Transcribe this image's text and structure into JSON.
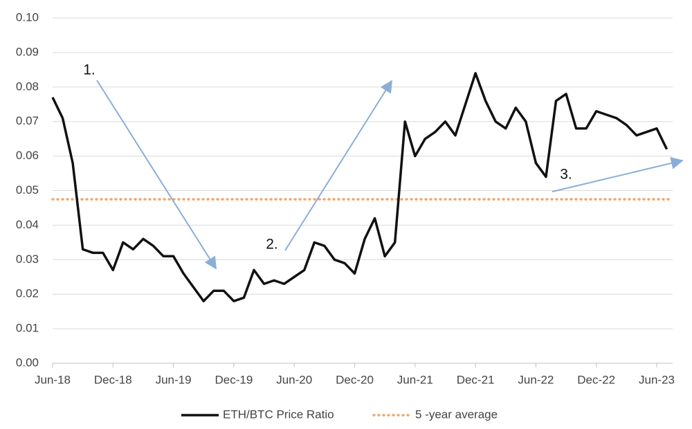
{
  "chart_data": {
    "type": "line",
    "categories": [
      "Jun-18",
      null,
      null,
      null,
      null,
      null,
      "Dec-18",
      null,
      null,
      null,
      null,
      null,
      "Jun-19",
      null,
      null,
      null,
      null,
      null,
      "Dec-19",
      null,
      null,
      null,
      null,
      null,
      "Jun-20",
      null,
      null,
      null,
      null,
      null,
      "Dec-20",
      null,
      null,
      null,
      null,
      null,
      "Jun-21",
      null,
      null,
      null,
      null,
      null,
      "Dec-21",
      null,
      null,
      null,
      null,
      null,
      "Jun-22",
      null,
      null,
      null,
      null,
      null,
      "Dec-22",
      null,
      null,
      null,
      null,
      null,
      "Jun-23",
      null
    ],
    "series": [
      {
        "name": "ETH/BTC Price Ratio",
        "color": "#111111",
        "values": [
          0.077,
          0.071,
          0.058,
          0.033,
          0.032,
          0.032,
          0.027,
          0.035,
          0.033,
          0.036,
          0.034,
          0.031,
          0.031,
          0.026,
          0.022,
          0.018,
          0.021,
          0.021,
          0.018,
          0.019,
          0.027,
          0.023,
          0.024,
          0.023,
          0.025,
          0.027,
          0.035,
          0.034,
          0.03,
          0.029,
          0.026,
          0.036,
          0.042,
          0.031,
          0.035,
          0.07,
          0.06,
          0.065,
          0.067,
          0.07,
          0.066,
          0.075,
          0.084,
          0.076,
          0.07,
          0.068,
          0.074,
          0.07,
          0.058,
          0.054,
          0.076,
          0.078,
          0.068,
          0.068,
          0.073,
          0.072,
          0.071,
          0.069,
          0.066,
          0.067,
          0.068,
          0.062
        ]
      }
    ],
    "average": {
      "name": "5 -year average",
      "value": 0.0475,
      "color": "#f0a870"
    },
    "annotations": [
      "1.",
      "2.",
      "3."
    ],
    "ylim": [
      0,
      0.1
    ],
    "yticks": [
      {
        "value": 0,
        "label": "0.00"
      },
      {
        "value": 0.01,
        "label": "0.01"
      },
      {
        "value": 0.02,
        "label": "0.02"
      },
      {
        "value": 0.03,
        "label": "0.03"
      },
      {
        "value": 0.04,
        "label": "0.04"
      },
      {
        "value": 0.05,
        "label": "0.05"
      },
      {
        "value": 0.06,
        "label": "0.06"
      },
      {
        "value": 0.07,
        "label": "0.07"
      },
      {
        "value": 0.08,
        "label": "0.08"
      },
      {
        "value": 0.09,
        "label": "0.09"
      },
      {
        "value": 0.1,
        "label": "0.10"
      }
    ],
    "grid": true,
    "legend": "bottom"
  }
}
